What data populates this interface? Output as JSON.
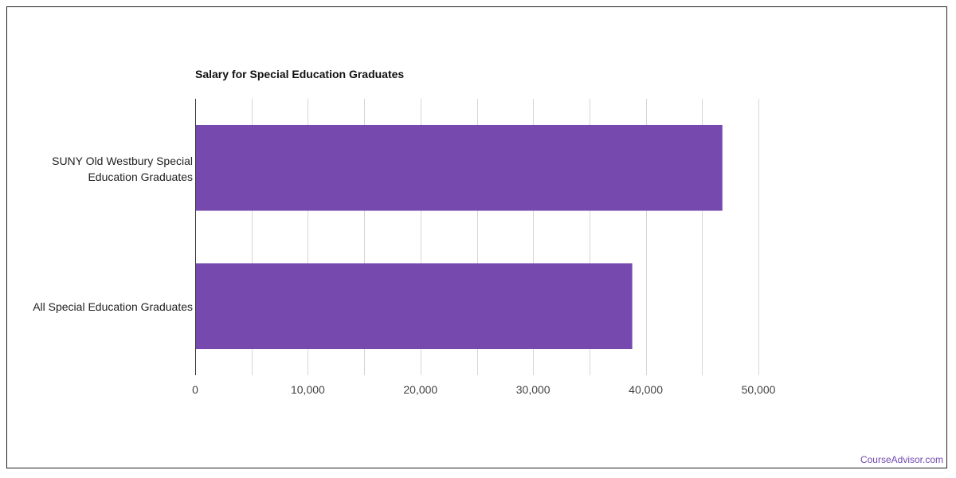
{
  "chart_data": {
    "type": "bar",
    "orientation": "horizontal",
    "title": "Salary for Special Education Graduates",
    "categories": [
      "SUNY Old Westbury Special Education Graduates",
      "All Special Education Graduates"
    ],
    "values": [
      46800,
      38800
    ],
    "xlim": [
      0,
      50000
    ],
    "xticks": [
      0,
      10000,
      20000,
      30000,
      40000,
      50000
    ],
    "xtick_labels": [
      "0",
      "10,000",
      "20,000",
      "30,000",
      "40,000",
      "50,000"
    ],
    "grid": true,
    "bar_color": "#7549ae",
    "xlabel": "",
    "ylabel": ""
  },
  "category_label_lines": [
    [
      "SUNY Old Westbury Special",
      "Education Graduates"
    ],
    [
      "All Special Education Graduates"
    ]
  ],
  "credit": "CourseAdvisor.com",
  "colors": {
    "accent": "#7549ae",
    "credit": "#7049b0",
    "grid": "#d6d6d6",
    "axis": "#333333"
  }
}
